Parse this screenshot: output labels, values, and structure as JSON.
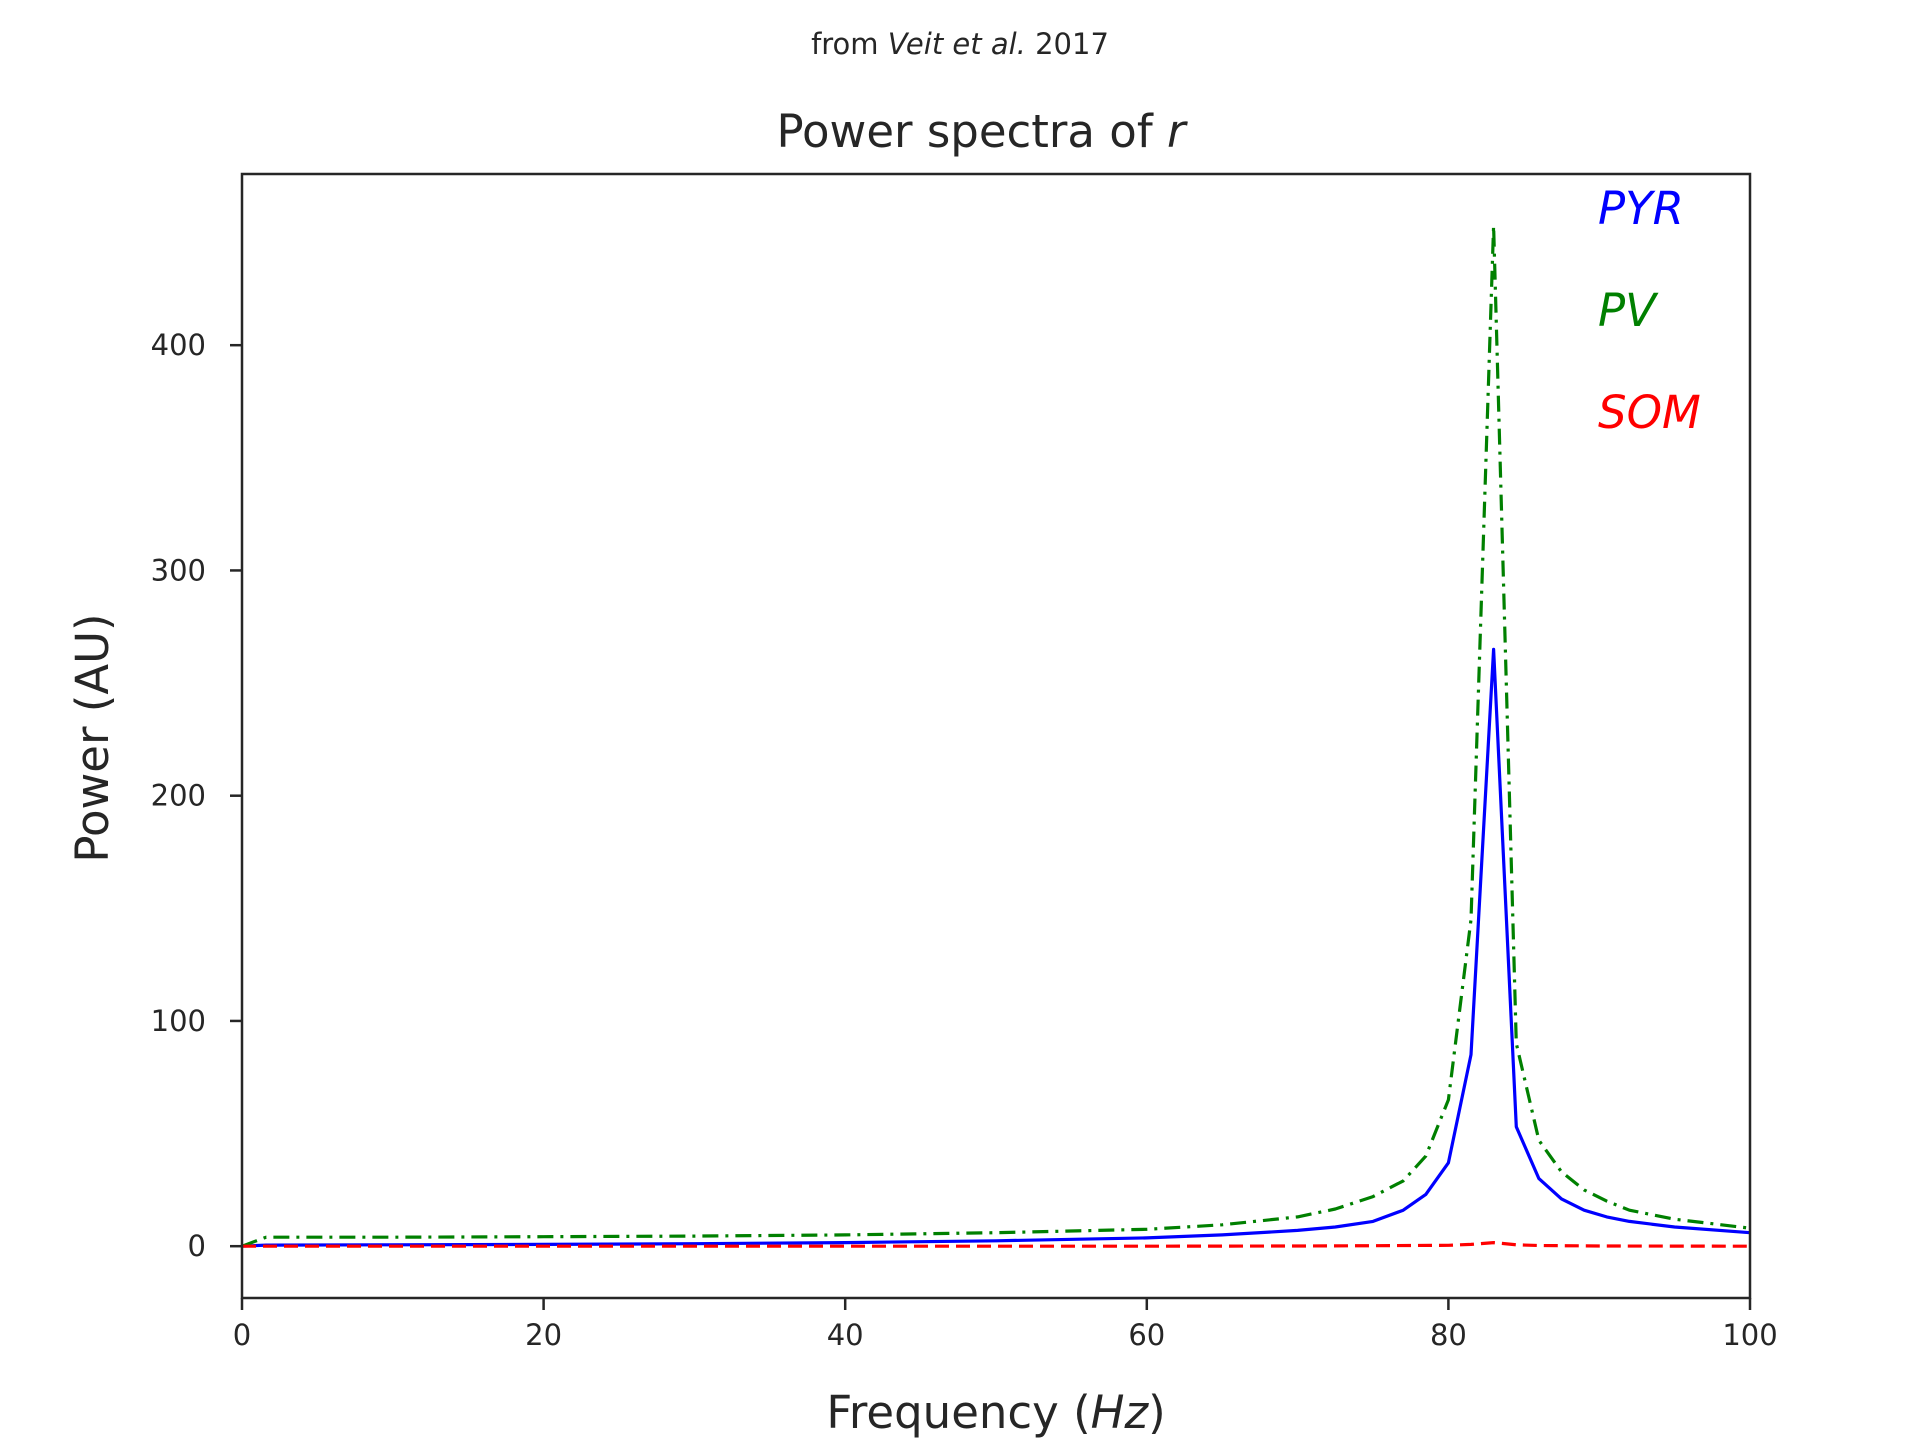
{
  "chart_data": {
    "type": "line",
    "suptitle": {
      "prefix": "from ",
      "italic": "Veit et al.",
      "suffix": " 2017"
    },
    "title": {
      "prefix": "Power spectra of ",
      "italic": "r"
    },
    "xlabel": {
      "prefix": "Frequency (",
      "italic": "Hz",
      "suffix": ")"
    },
    "ylabel": "Power (AU)",
    "xlim": [
      0,
      100
    ],
    "ylim": [
      -23,
      476
    ],
    "xticks": [
      0,
      20,
      40,
      60,
      80,
      100
    ],
    "xtick_labels": [
      "0",
      "20",
      "40",
      "60",
      "80",
      "100"
    ],
    "yticks": [
      0,
      100,
      200,
      300,
      400
    ],
    "ytick_labels": [
      "0",
      "100",
      "200",
      "300",
      "400"
    ],
    "grid": false,
    "legend_placement": "top-right",
    "series": [
      {
        "name": "PYR",
        "color": "#0000ff",
        "dash": "solid",
        "x": [
          0,
          1.6,
          10,
          20,
          30,
          40,
          50,
          60,
          65,
          70,
          72.5,
          75,
          77,
          78.5,
          80,
          81.5,
          83,
          84.5,
          86,
          87.5,
          89,
          90.5,
          92,
          95,
          100
        ],
        "y": [
          0,
          0.5,
          0.6,
          0.8,
          1.1,
          1.6,
          2.4,
          3.7,
          5,
          7,
          8.5,
          11,
          16,
          23,
          37,
          85,
          265,
          53,
          30,
          21,
          16,
          13,
          11,
          8.5,
          6
        ]
      },
      {
        "name": "PV",
        "color": "#008000",
        "dash": "dashdot",
        "x": [
          0,
          1.6,
          10,
          20,
          30,
          40,
          50,
          60,
          65,
          70,
          72.5,
          75,
          77,
          78.5,
          80,
          81.5,
          83,
          84.5,
          86,
          87.5,
          89,
          90.5,
          92,
          95,
          100
        ],
        "y": [
          0,
          4,
          4,
          4.2,
          4.5,
          5,
          6,
          7.5,
          9.5,
          13,
          16.5,
          22,
          29,
          40,
          65,
          145,
          453,
          90,
          47,
          33,
          25,
          20,
          16,
          12,
          8
        ]
      },
      {
        "name": "SOM",
        "color": "#ff0000",
        "dash": "dashed",
        "x": [
          0,
          10,
          20,
          30,
          40,
          50,
          60,
          70,
          75,
          80,
          81.5,
          83,
          84.5,
          86,
          90,
          100
        ],
        "y": [
          0,
          0,
          0,
          0,
          0,
          0,
          0,
          0.1,
          0.2,
          0.4,
          0.8,
          1.6,
          0.6,
          0.3,
          0.1,
          0
        ]
      }
    ]
  }
}
